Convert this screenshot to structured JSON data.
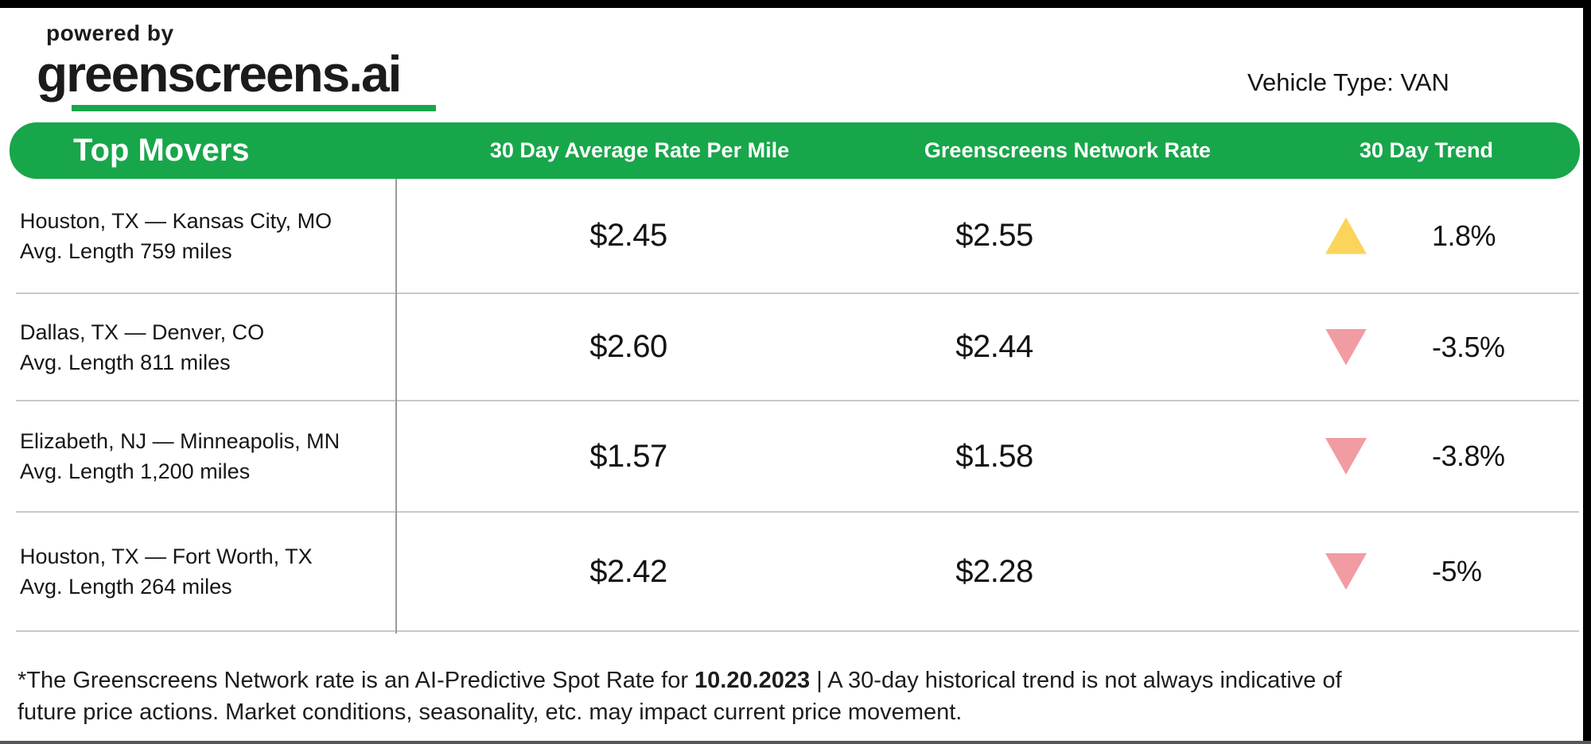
{
  "branding": {
    "powered_by": "powered by",
    "logo_text": "greenscreens.ai"
  },
  "vehicle_type": "Vehicle Type: VAN",
  "table": {
    "headers": {
      "top_movers": "Top Movers",
      "avg_rate": "30 Day Average Rate Per Mile",
      "network_rate": "Greenscreens Network Rate",
      "trend": "30 Day Trend"
    },
    "rows": [
      {
        "lane": "Houston, TX — Kansas City, MO",
        "avg_length": "Avg. Length 759 miles",
        "avg_rate": "$2.45",
        "network_rate": "$2.55",
        "trend_direction": "up",
        "trend_value": "1.8%"
      },
      {
        "lane": "Dallas, TX — Denver, CO",
        "avg_length": "Avg. Length 811 miles",
        "avg_rate": "$2.60",
        "network_rate": "$2.44",
        "trend_direction": "down",
        "trend_value": "-3.5%"
      },
      {
        "lane": "Elizabeth, NJ — Minneapolis, MN",
        "avg_length": "Avg. Length 1,200 miles",
        "avg_rate": "$1.57",
        "network_rate": "$1.58",
        "trend_direction": "down",
        "trend_value": "-3.8%"
      },
      {
        "lane": "Houston, TX — Fort Worth, TX",
        "avg_length": "Avg. Length 264 miles",
        "avg_rate": "$2.42",
        "network_rate": "$2.28",
        "trend_direction": "down",
        "trend_value": "-5%"
      }
    ]
  },
  "footnote": {
    "prefix": "*The Greenscreens Network rate is an AI-Predictive Spot Rate for ",
    "date": "10.20.2023",
    "line1_tail": " | A 30-day historical trend is not always indicative of",
    "line2": "future price actions. Market conditions, seasonality, etc. may impact current price movement."
  },
  "colors": {
    "brand_green": "#18A64B",
    "trend_up": "#FBD45C",
    "trend_down": "#F19CA2",
    "text_dark": "#1B1B1B",
    "separator": "#C9C9C9",
    "divider": "#9B9B9B",
    "frame_black": "#000000",
    "frame_bottom": "#55555A"
  },
  "chart_data": {
    "type": "table",
    "title": "Top Movers",
    "subtitle": "Vehicle Type: VAN",
    "columns": [
      "Top Movers",
      "30 Day Average Rate Per Mile",
      "Greenscreens Network Rate",
      "30 Day Trend"
    ],
    "rows": [
      {
        "lane": "Houston, TX — Kansas City, MO",
        "avg_length_miles": 759,
        "avg_rate_per_mile_usd": 2.45,
        "greenscreens_network_rate_usd": 2.55,
        "trend_30day_pct": 1.8,
        "trend_direction": "up"
      },
      {
        "lane": "Dallas, TX — Denver, CO",
        "avg_length_miles": 811,
        "avg_rate_per_mile_usd": 2.6,
        "greenscreens_network_rate_usd": 2.44,
        "trend_30day_pct": -3.5,
        "trend_direction": "down"
      },
      {
        "lane": "Elizabeth, NJ — Minneapolis, MN",
        "avg_length_miles": 1200,
        "avg_rate_per_mile_usd": 1.57,
        "greenscreens_network_rate_usd": 1.58,
        "trend_30day_pct": -3.8,
        "trend_direction": "down"
      },
      {
        "lane": "Houston, TX — Fort Worth, TX",
        "avg_length_miles": 264,
        "avg_rate_per_mile_usd": 2.42,
        "greenscreens_network_rate_usd": 2.28,
        "trend_30day_pct": -5,
        "trend_direction": "down"
      }
    ],
    "annotations": [
      "*The Greenscreens Network rate is an AI-Predictive Spot Rate for 10.20.2023 | A 30-day historical trend is not always indicative of future price actions. Market conditions, seasonality, etc. may impact current price movement."
    ]
  }
}
